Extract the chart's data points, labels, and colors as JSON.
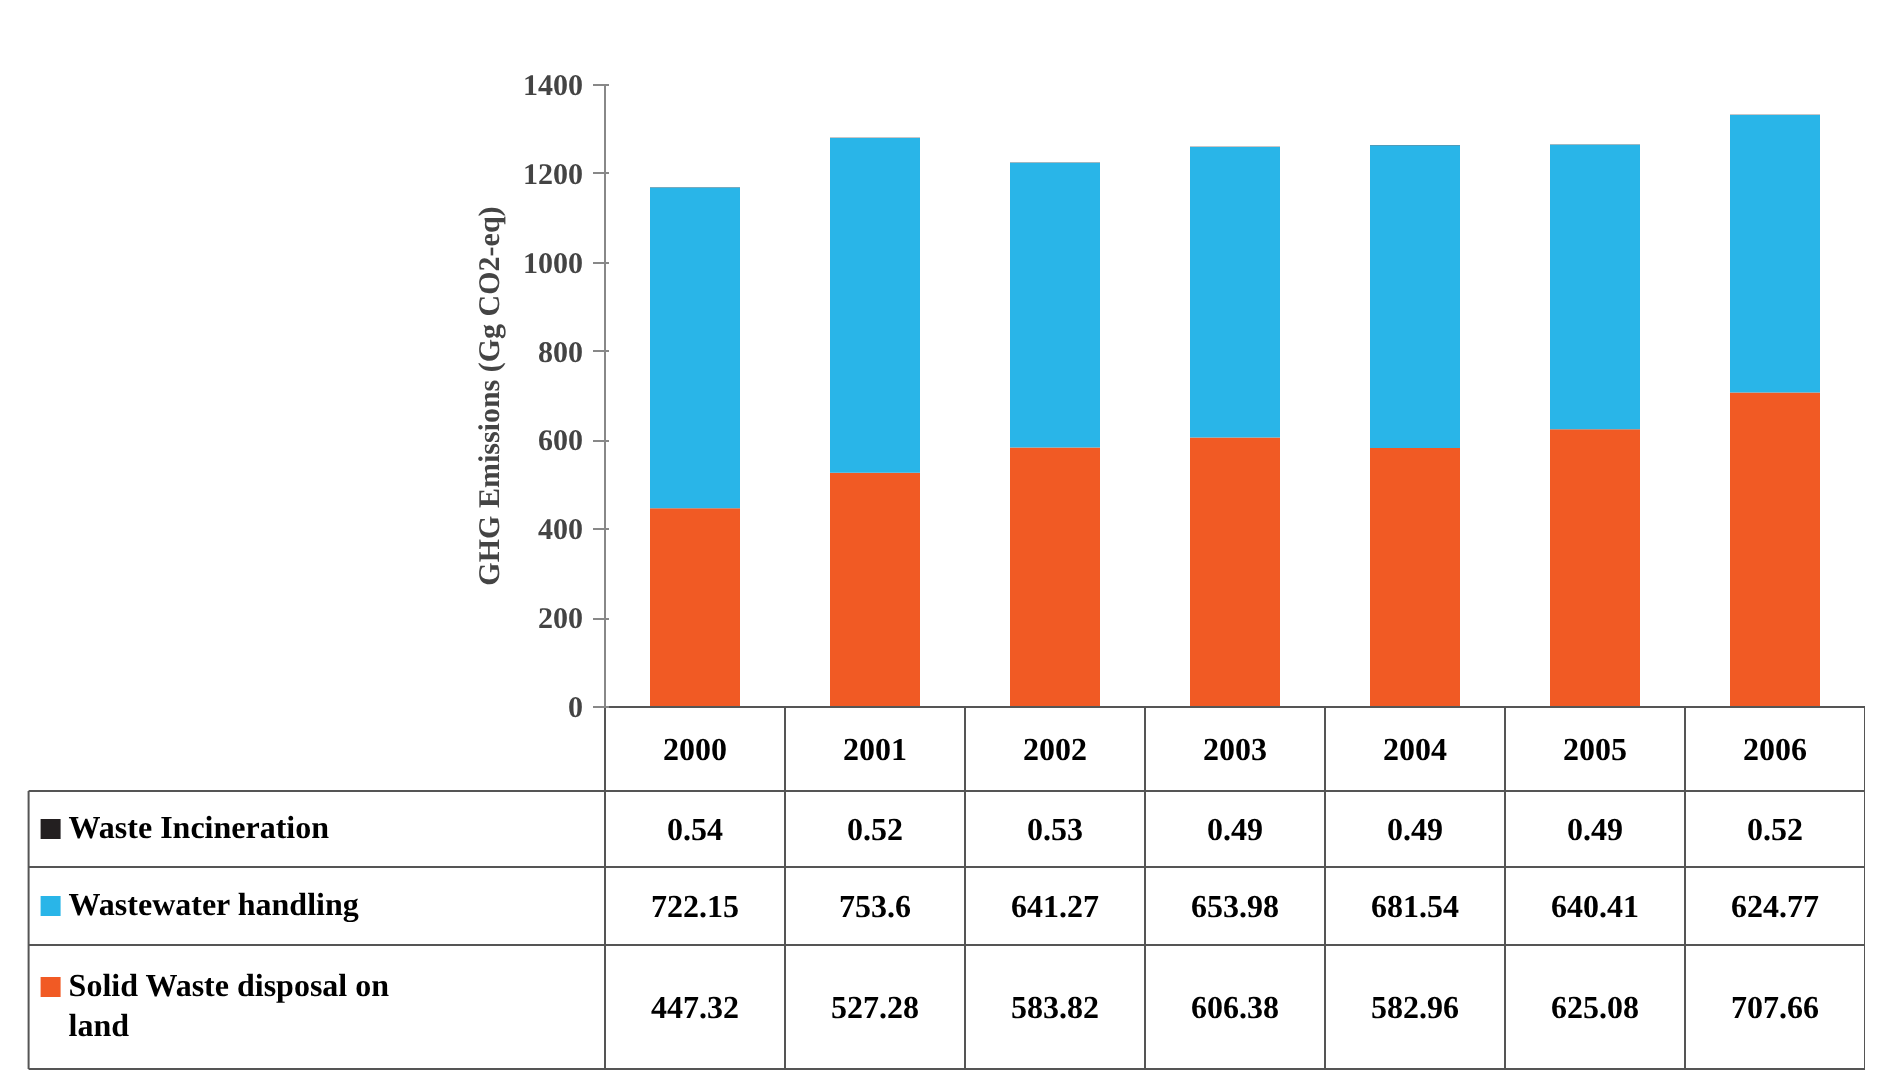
{
  "chart_data": {
    "type": "bar",
    "stacked": true,
    "ylabel": "GHG Emissions (Gg CO2-eq)",
    "categories": [
      "2000",
      "2001",
      "2002",
      "2003",
      "2004",
      "2005",
      "2006"
    ],
    "series": [
      {
        "name": "Solid Waste disposal on land",
        "color": "#f15a24",
        "values": [
          447.32,
          527.28,
          583.82,
          606.38,
          582.96,
          625.08,
          707.66
        ]
      },
      {
        "name": "Wastewater handling",
        "color": "#29b5e8",
        "values": [
          722.15,
          753.6,
          641.27,
          653.98,
          681.54,
          640.41,
          624.77
        ]
      },
      {
        "name": "Waste Incineration",
        "color": "#231f20",
        "values": [
          0.54,
          0.52,
          0.53,
          0.49,
          0.49,
          0.49,
          0.52
        ]
      }
    ],
    "ylim": [
      0,
      1400
    ],
    "yticks": [
      0,
      200,
      400,
      600,
      800,
      1000,
      1200,
      1400
    ],
    "data_labels": true,
    "legend": "bottom left"
  }
}
